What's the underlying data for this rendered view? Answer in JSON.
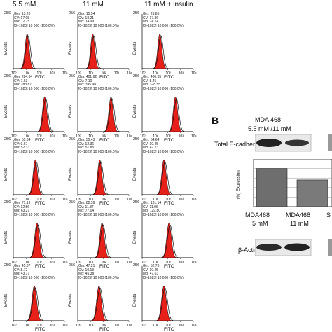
{
  "columns": [
    "5.5 mM",
    "11 mM",
    "11 mM + insulin"
  ],
  "axis": {
    "ylabel": "Events",
    "xlabel": "FITC",
    "ymax": "256",
    "xticks": [
      "10⁰",
      "10¹",
      "10²",
      "10³",
      "10⁴"
    ]
  },
  "rows": [
    [
      {
        "gm": "13.26",
        "cv": "17.08",
        "md": "12.75"
      },
      {
        "gm": "15.54",
        "cv": "18.21",
        "md": "14.99"
      },
      {
        "gm": "25.85",
        "cv": "17.36",
        "md": "24.14"
      }
    ],
    [
      {
        "gm": "284.64",
        "cv": "7.63",
        "md": "283.87"
      },
      {
        "gm": "401.62",
        "cv": "7.10",
        "md": "395.98"
      },
      {
        "gm": "400.35",
        "cv": "8.45",
        "md": "378.55"
      }
    ],
    [
      {
        "gm": "55.64",
        "cv": "9.67",
        "md": "52.33"
      },
      {
        "gm": "55.43",
        "cv": "12.36",
        "md": "51.85"
      },
      {
        "gm": "54.64",
        "cv": "10.45",
        "md": "47.23"
      }
    ],
    [
      {
        "gm": "71.19",
        "cv": "12.56",
        "md": "63.21"
      },
      {
        "gm": "82.39",
        "cv": "11.87",
        "md": "77.04"
      },
      {
        "gm": "131.14",
        "cv": "11.06",
        "md": "129.80"
      }
    ],
    [
      {
        "gm": "45.87",
        "cv": "8.72",
        "md": "43.71"
      },
      {
        "gm": "47.21",
        "cv": "10.18",
        "md": "45.38"
      },
      {
        "gm": "52.76",
        "cv": "10.45",
        "md": "47.63"
      }
    ]
  ],
  "gate_line": "[0–1023] 10 000 (100.0%)",
  "histogram_peaks_log": [
    [
      1.08,
      1.17,
      1.38
    ],
    [
      2.45,
      2.6,
      2.6
    ],
    [
      1.72,
      1.72,
      1.7
    ],
    [
      1.85,
      1.9,
      2.1
    ],
    [
      1.64,
      1.66,
      1.7
    ]
  ],
  "histogram_fill_color": "#e8201a",
  "panel_b": {
    "label": "B",
    "title": "MDA 468",
    "subtitle": "5.5 mM /11 mM",
    "protein": "Total E-cadherin",
    "ylabel": "(%) Expression",
    "bars": [
      {
        "name": "MDA468",
        "condition": "5 mM",
        "value": 100
      },
      {
        "name": "MDA468",
        "condition": "11 mM",
        "value": 70
      }
    ],
    "cut_label": "S",
    "loading": "β-Actin"
  }
}
